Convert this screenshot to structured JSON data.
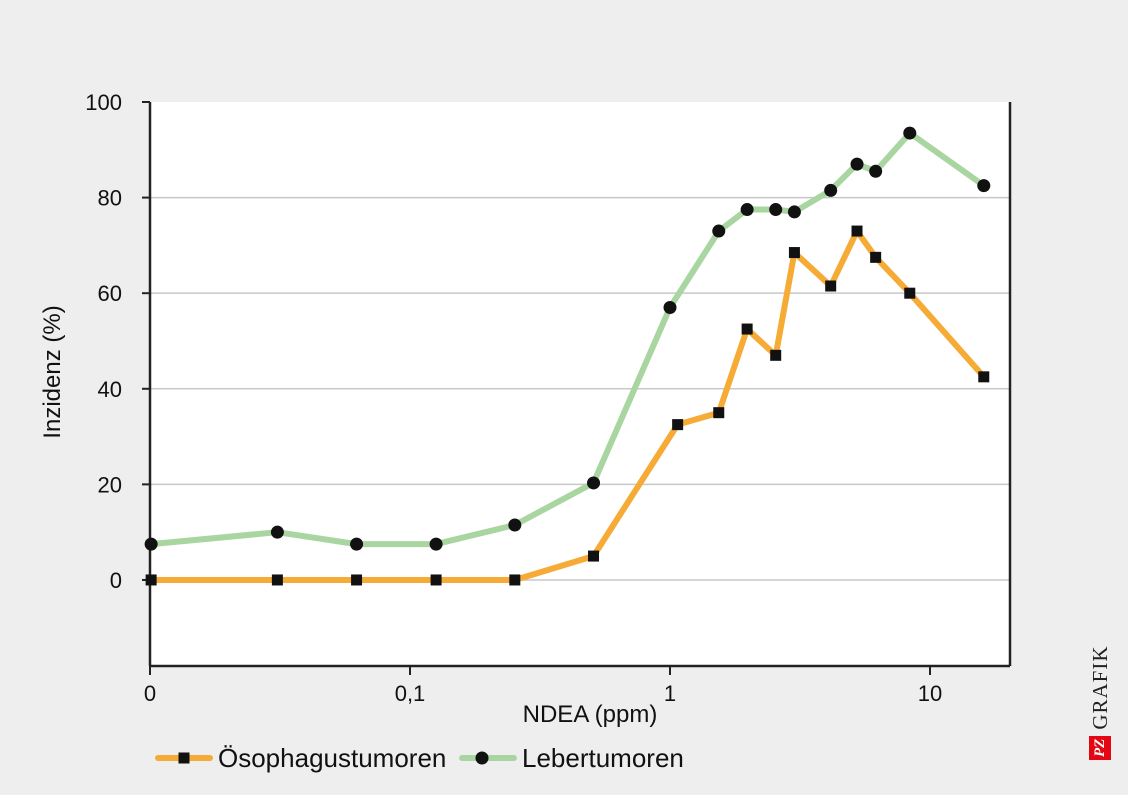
{
  "chart_data": {
    "type": "line",
    "xlabel": "NDEA (ppm)",
    "ylabel": "Inzidenz (%)",
    "x_scale": "log",
    "x_ticks": [
      {
        "value": 0.01,
        "label": "0"
      },
      {
        "value": 0.1,
        "label": "0,1"
      },
      {
        "value": 1,
        "label": "1"
      },
      {
        "value": 10,
        "label": "10"
      }
    ],
    "ylim": [
      -18,
      100
    ],
    "y_ticks": [
      0,
      20,
      40,
      60,
      80,
      100
    ],
    "grid": true,
    "legend_position": "bottom",
    "series": [
      {
        "name": "Ösophagustumoren",
        "color": "#f5ab35",
        "marker": "square",
        "points": [
          [
            0.0101,
            0
          ],
          [
            0.0309,
            0
          ],
          [
            0.0623,
            0
          ],
          [
            0.126,
            0
          ],
          [
            0.253,
            0
          ],
          [
            0.508,
            5
          ],
          [
            1.07,
            32.5
          ],
          [
            1.54,
            35
          ],
          [
            1.98,
            52.5
          ],
          [
            2.55,
            47
          ],
          [
            3.01,
            68.5
          ],
          [
            4.15,
            61.5
          ],
          [
            5.24,
            73
          ],
          [
            6.18,
            67.5
          ],
          [
            8.36,
            60
          ],
          [
            16.1,
            42.5
          ]
        ]
      },
      {
        "name": "Lebertumoren",
        "color": "#a8d5a0",
        "marker": "circle",
        "points": [
          [
            0.0101,
            7.5
          ],
          [
            0.0309,
            10
          ],
          [
            0.0623,
            7.5
          ],
          [
            0.126,
            7.5
          ],
          [
            0.253,
            11.5
          ],
          [
            0.508,
            20.3
          ],
          [
            1.0,
            57
          ],
          [
            1.54,
            73
          ],
          [
            1.98,
            77.5
          ],
          [
            2.55,
            77.5
          ],
          [
            3.01,
            77
          ],
          [
            4.15,
            81.5
          ],
          [
            5.24,
            87
          ],
          [
            6.18,
            85.5
          ],
          [
            8.36,
            93.5
          ],
          [
            16.1,
            82.5
          ]
        ]
      }
    ]
  },
  "branding": {
    "logo_mark": "PZ",
    "logo_word": "GRAFIK"
  }
}
